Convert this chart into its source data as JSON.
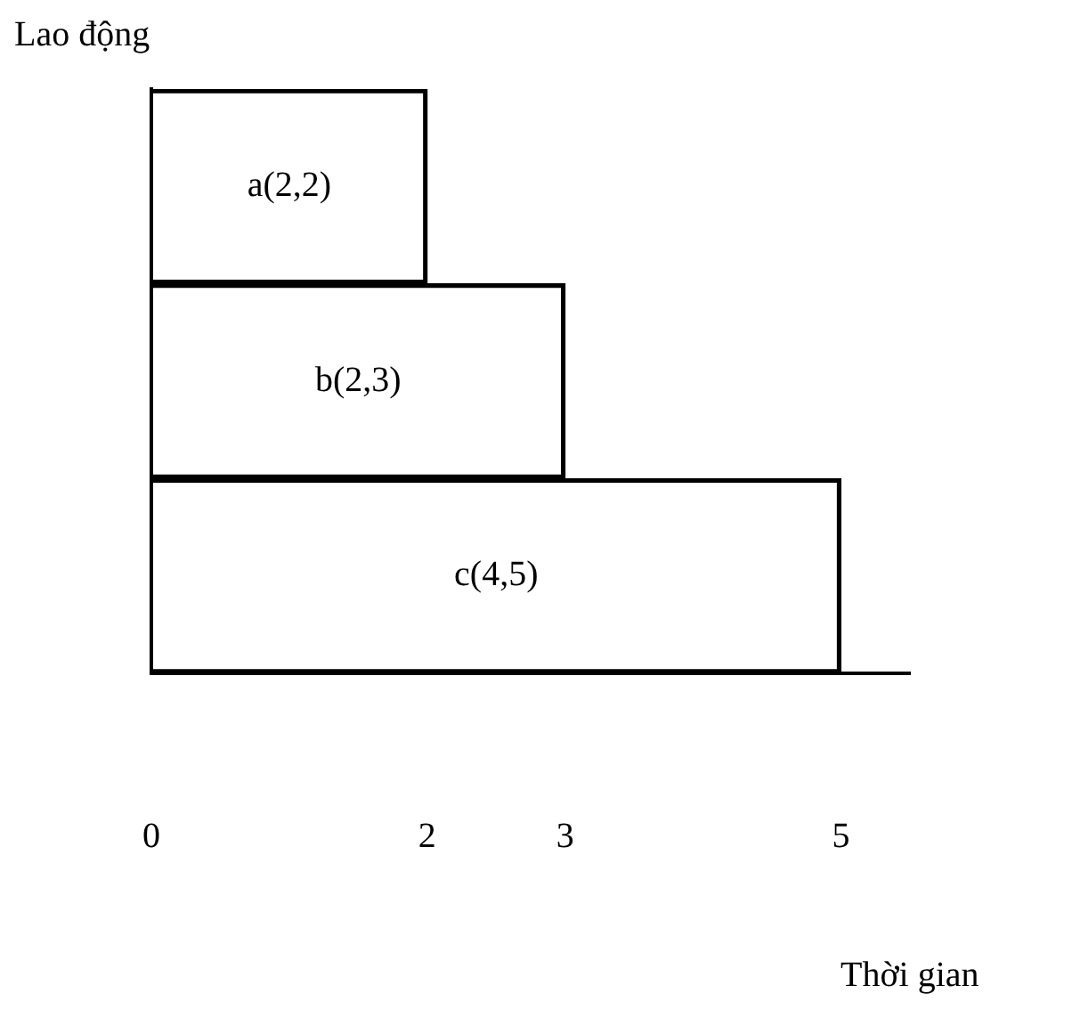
{
  "chart_data": {
    "type": "bar",
    "orientation": "horizontal",
    "xlabel": "Thời gian",
    "ylabel": "Lao động",
    "categories": [
      null,
      null,
      null
    ],
    "values": [
      2,
      3,
      5
    ],
    "value_labels": [
      "a(2,2)",
      "b(2,3)",
      "c(4,5)"
    ],
    "color": "#000000",
    "xlim": [
      0,
      5.5
    ],
    "xticks": [
      0,
      2,
      3,
      5
    ],
    "tick_labels": "x",
    "grid": false,
    "legend": false
  }
}
